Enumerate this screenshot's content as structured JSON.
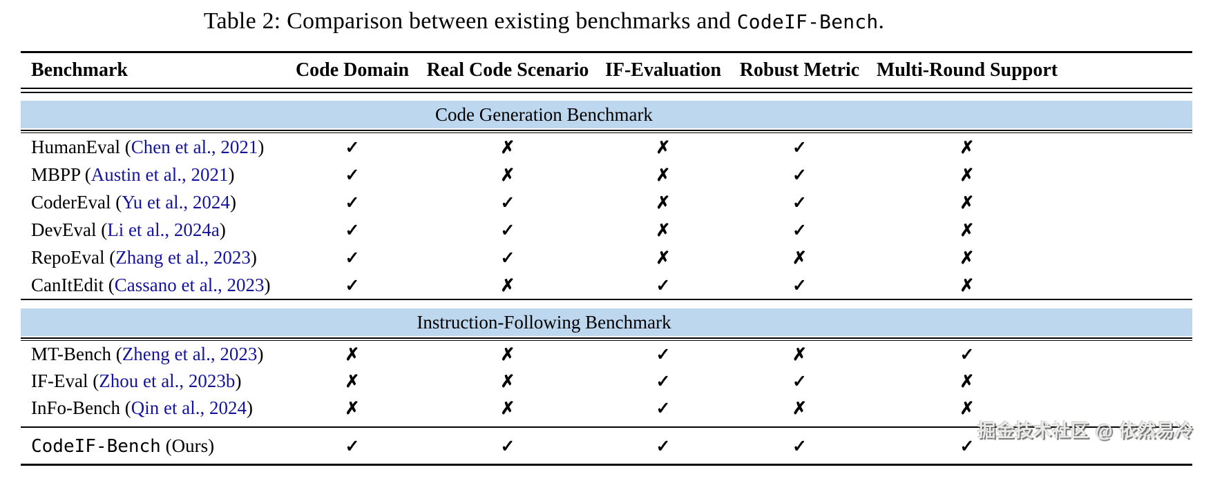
{
  "title": {
    "prefix": "Table 2: Comparison between existing benchmarks and ",
    "code": "CodeIF-Bench",
    "suffix": "."
  },
  "table": {
    "columns": [
      "Benchmark",
      "Code Domain",
      "Real Code Scenario",
      "IF-Evaluation",
      "Robust Metric",
      "Multi-Round Support"
    ],
    "marks": {
      "check": "✓",
      "cross": "✗"
    },
    "sections": [
      {
        "label": "Code Generation Benchmark",
        "rows": [
          {
            "name": "HumanEval",
            "citation": "Chen et al., 2021",
            "values": [
              "check",
              "cross",
              "cross",
              "check",
              "cross"
            ]
          },
          {
            "name": "MBPP",
            "citation": "Austin et al., 2021",
            "values": [
              "check",
              "cross",
              "cross",
              "check",
              "cross"
            ]
          },
          {
            "name": "CoderEval",
            "citation": "Yu et al., 2024",
            "values": [
              "check",
              "check",
              "cross",
              "check",
              "cross"
            ]
          },
          {
            "name": "DevEval",
            "citation": "Li et al., 2024a",
            "values": [
              "check",
              "check",
              "cross",
              "check",
              "cross"
            ]
          },
          {
            "name": "RepoEval",
            "citation": "Zhang et al., 2023",
            "values": [
              "check",
              "check",
              "cross",
              "cross",
              "cross"
            ]
          },
          {
            "name": "CanItEdit",
            "citation": "Cassano et al., 2023",
            "values": [
              "check",
              "cross",
              "check",
              "check",
              "cross"
            ]
          }
        ]
      },
      {
        "label": "Instruction-Following Benchmark",
        "rows": [
          {
            "name": "MT-Bench",
            "citation": "Zheng et al., 2023",
            "values": [
              "cross",
              "cross",
              "check",
              "cross",
              "check"
            ]
          },
          {
            "name": "IF-Eval",
            "citation": "Zhou et al., 2023b",
            "values": [
              "cross",
              "cross",
              "check",
              "check",
              "cross"
            ]
          },
          {
            "name": "InFo-Bench",
            "citation": "Qin et al., 2024",
            "values": [
              "cross",
              "cross",
              "check",
              "cross",
              "cross"
            ]
          }
        ]
      }
    ],
    "final_row": {
      "mono_name": "CodeIF-Bench",
      "suffix": " (Ours)",
      "values": [
        "check",
        "check",
        "check",
        "check",
        "check"
      ]
    }
  },
  "colors": {
    "band": "#BDD7EE",
    "link": "#14149B",
    "rule": "#000000"
  },
  "watermark": "掘金技术社区 @ 依然易冷"
}
